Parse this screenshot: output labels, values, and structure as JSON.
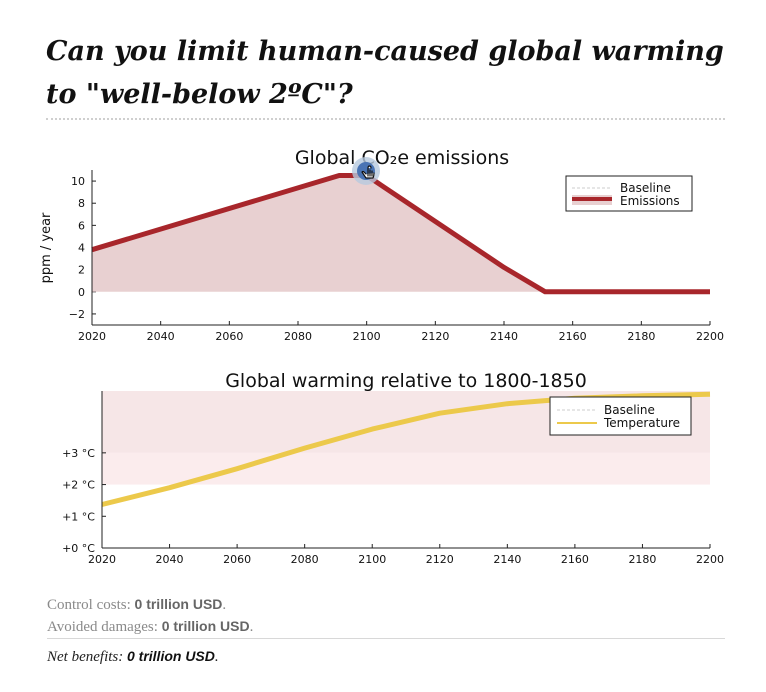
{
  "page": {
    "title": "Can you limit human-caused global warming to \"well-below 2ºC\"?"
  },
  "chart_data": [
    {
      "type": "area",
      "title": "Global CO₂e emissions",
      "xlabel": "",
      "ylabel": "ppm / year",
      "xlim": [
        2020,
        2200
      ],
      "ylim": [
        -3,
        11
      ],
      "x_ticks": [
        2020,
        2040,
        2060,
        2080,
        2100,
        2120,
        2140,
        2160,
        2180,
        2200
      ],
      "y_ticks": [
        -2,
        0,
        2,
        4,
        6,
        8,
        10
      ],
      "y_tick_labels": [
        "−2",
        "0",
        "2",
        "4",
        "6",
        "8",
        "10"
      ],
      "legend_position": "top-right",
      "legend": [
        "Baseline",
        "Emissions"
      ],
      "series": [
        {
          "name": "Emissions",
          "color": "#a8262b",
          "fill": "#e8d0d1",
          "x": [
            2020,
            2092,
            2100,
            2140,
            2152,
            2200
          ],
          "y": [
            3.8,
            10.5,
            10.5,
            2.2,
            0,
            0
          ]
        },
        {
          "name": "Baseline",
          "color": "#cccccc",
          "x": [],
          "y": []
        }
      ]
    },
    {
      "type": "line",
      "title": "Global warming relative to 1800-1850",
      "xlabel": "",
      "ylabel": "",
      "xlim": [
        2020,
        2200
      ],
      "ylim": [
        0,
        4.95
      ],
      "x_ticks": [
        2020,
        2040,
        2060,
        2080,
        2100,
        2120,
        2140,
        2160,
        2180,
        2200
      ],
      "y_ticks": [
        0,
        1,
        2,
        3
      ],
      "y_tick_labels": [
        "+0 °C",
        "+1 °C",
        "+2 °C",
        "+3 °C"
      ],
      "bands": [
        {
          "from": 2,
          "to": 3,
          "color": "#fbeced"
        },
        {
          "from": 3,
          "to": 4.95,
          "color": "#f6e6e7"
        }
      ],
      "legend_position": "top-right",
      "legend": [
        "Baseline",
        "Temperature"
      ],
      "series": [
        {
          "name": "Temperature",
          "color": "#ecc94b",
          "x": [
            2020,
            2040,
            2060,
            2080,
            2100,
            2120,
            2140,
            2160,
            2180,
            2200
          ],
          "y": [
            1.37,
            1.9,
            2.5,
            3.15,
            3.75,
            4.25,
            4.55,
            4.72,
            4.8,
            4.85
          ]
        },
        {
          "name": "Baseline",
          "color": "#cccccc",
          "x": [],
          "y": []
        }
      ]
    }
  ],
  "summary": {
    "control_label": "Control costs: ",
    "control_value": "0 trillion USD",
    "avoided_label": "Avoided damages: ",
    "avoided_value": "0 trillion USD",
    "net_label": "Net benefits: ",
    "net_value": "0 trillion USD",
    "period": "."
  }
}
